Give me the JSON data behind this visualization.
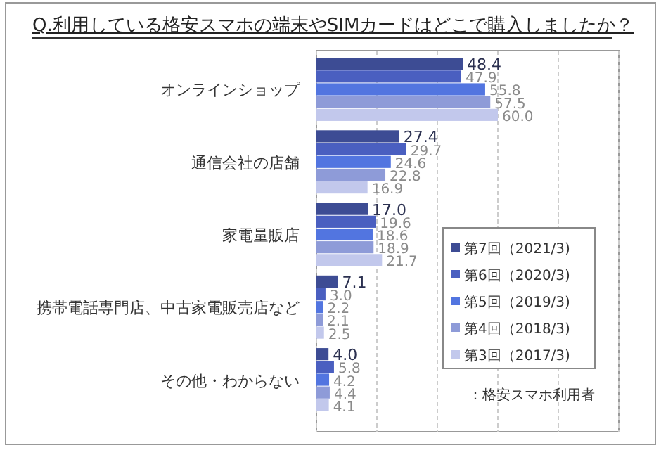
{
  "chart_data": {
    "type": "bar",
    "orientation": "horizontal",
    "title": "Q.利用している格安スマホの端末やSIMカードはどこで購入しましたか？",
    "categories": [
      "オンラインショップ",
      "通信会社の店舗",
      "家電量販店",
      "携帯電話専門店、中古家電販売店など",
      "その他・わからない"
    ],
    "series": [
      {
        "name": "第7回（2021/3)",
        "color": "#3d4c94",
        "values": [
          48.4,
          27.4,
          17.0,
          7.1,
          4.0
        ],
        "value_labels": [
          "48.4",
          "27.4",
          "17.0",
          "7.1",
          "4.0"
        ]
      },
      {
        "name": "第6回（2020/3)",
        "color": "#4a5fc0",
        "values": [
          47.9,
          29.7,
          19.6,
          3.0,
          5.8
        ],
        "value_labels": [
          "47.9",
          "29.7",
          "19.6",
          "3.0",
          "5.8"
        ]
      },
      {
        "name": "第5回（2019/3)",
        "color": "#5275e0",
        "values": [
          55.8,
          24.6,
          18.6,
          2.2,
          4.2
        ],
        "value_labels": [
          "55.8",
          "24.6",
          "18.6",
          "2.2",
          "4.2"
        ]
      },
      {
        "name": "第4回（2018/3)",
        "color": "#8e9bd8",
        "values": [
          57.5,
          22.8,
          18.9,
          2.1,
          4.4
        ],
        "value_labels": [
          "57.5",
          "22.8",
          "18.9",
          "2.1",
          "4.4"
        ]
      },
      {
        "name": "第3回（2017/3)",
        "color": "#c2c8ec",
        "values": [
          60.0,
          16.9,
          21.7,
          2.5,
          4.1
        ],
        "value_labels": [
          "60.0",
          "16.9",
          "21.7",
          "2.5",
          "4.1"
        ]
      }
    ],
    "xlim": [
      0,
      100
    ],
    "xticks": [
      {
        "value": 0,
        "label": null
      },
      {
        "value": 20,
        "label": null
      },
      {
        "value": 40,
        "label": null
      },
      {
        "value": 60,
        "label": null
      },
      {
        "value": 80,
        "label": null
      },
      {
        "value": 100,
        "label": null
      }
    ],
    "tick_labels": "y",
    "grid": "x",
    "legend": "right",
    "annotations": [
      "：格安スマホ利用者"
    ]
  }
}
